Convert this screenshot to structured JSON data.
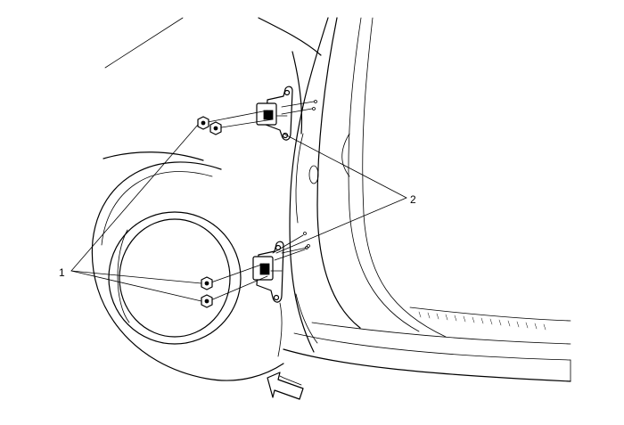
{
  "callouts": [
    {
      "id": "1",
      "label": "1"
    },
    {
      "id": "2",
      "label": "2"
    }
  ]
}
